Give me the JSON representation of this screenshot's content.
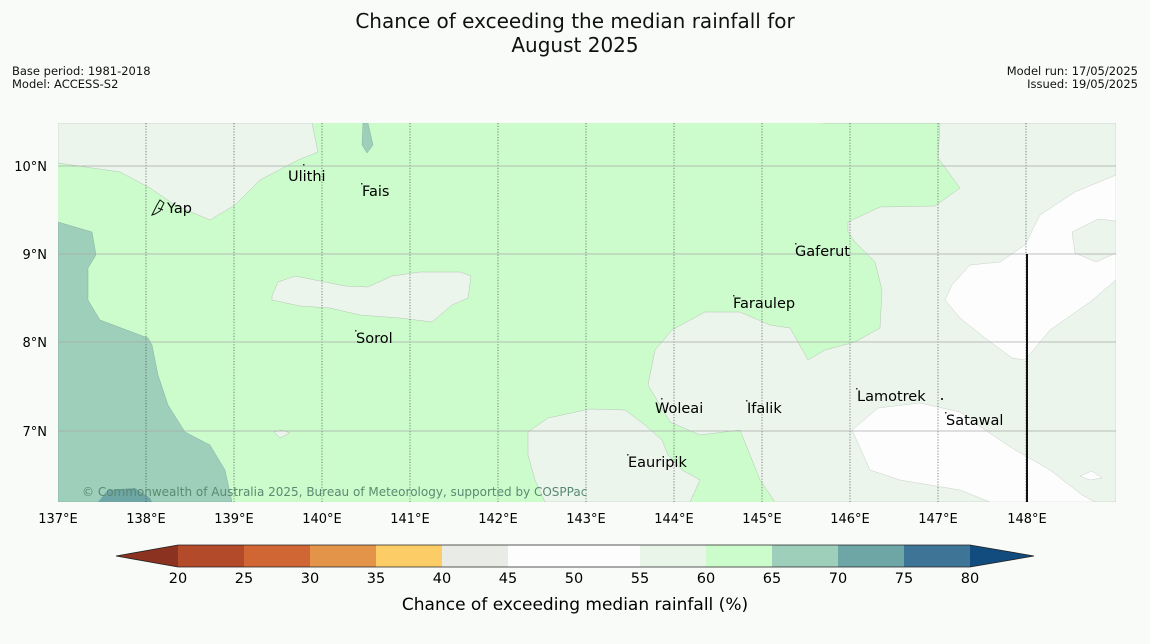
{
  "header": {
    "title_line1": "Chance of exceeding the median rainfall for",
    "title_line2": "August 2025",
    "base_period": "Base period: 1981-2018",
    "model": "Model: ACCESS-S2",
    "model_run": "Model run: 17/05/2025",
    "issued": "Issued: 19/05/2025"
  },
  "map": {
    "lon_labels": [
      "137°E",
      "138°E",
      "139°E",
      "140°E",
      "141°E",
      "142°E",
      "143°E",
      "144°E",
      "145°E",
      "146°E",
      "147°E",
      "148°E"
    ],
    "lat_labels": [
      "10°N",
      "9°N",
      "8°N",
      "7°N"
    ],
    "places": [
      {
        "name": "Yap"
      },
      {
        "name": "Ulithi"
      },
      {
        "name": "Fais"
      },
      {
        "name": "Gaferut"
      },
      {
        "name": "Faraulep"
      },
      {
        "name": "Sorol"
      },
      {
        "name": "Woleai"
      },
      {
        "name": "Ifalik"
      },
      {
        "name": "Lamotrek"
      },
      {
        "name": "Satawal"
      },
      {
        "name": "Eauripik"
      }
    ],
    "copyright": "© Commonwealth of Australia 2025, Bureau of Meteorology, supported by COSPPac"
  },
  "legend": {
    "title": "Chance of exceeding median rainfall (%)",
    "ticks": [
      "20",
      "25",
      "30",
      "35",
      "40",
      "45",
      "50",
      "55",
      "60",
      "65",
      "70",
      "75",
      "80"
    ],
    "colors": [
      "#8b3320",
      "#b34a2a",
      "#cf6634",
      "#e39448",
      "#fccd66",
      "#e9ece6",
      "#fdfdfd",
      "#fdfdfd",
      "#eaf5ea",
      "#ccfccc",
      "#9ecfbb",
      "#6ea5a5",
      "#3e7495",
      "#124b7e"
    ]
  }
}
